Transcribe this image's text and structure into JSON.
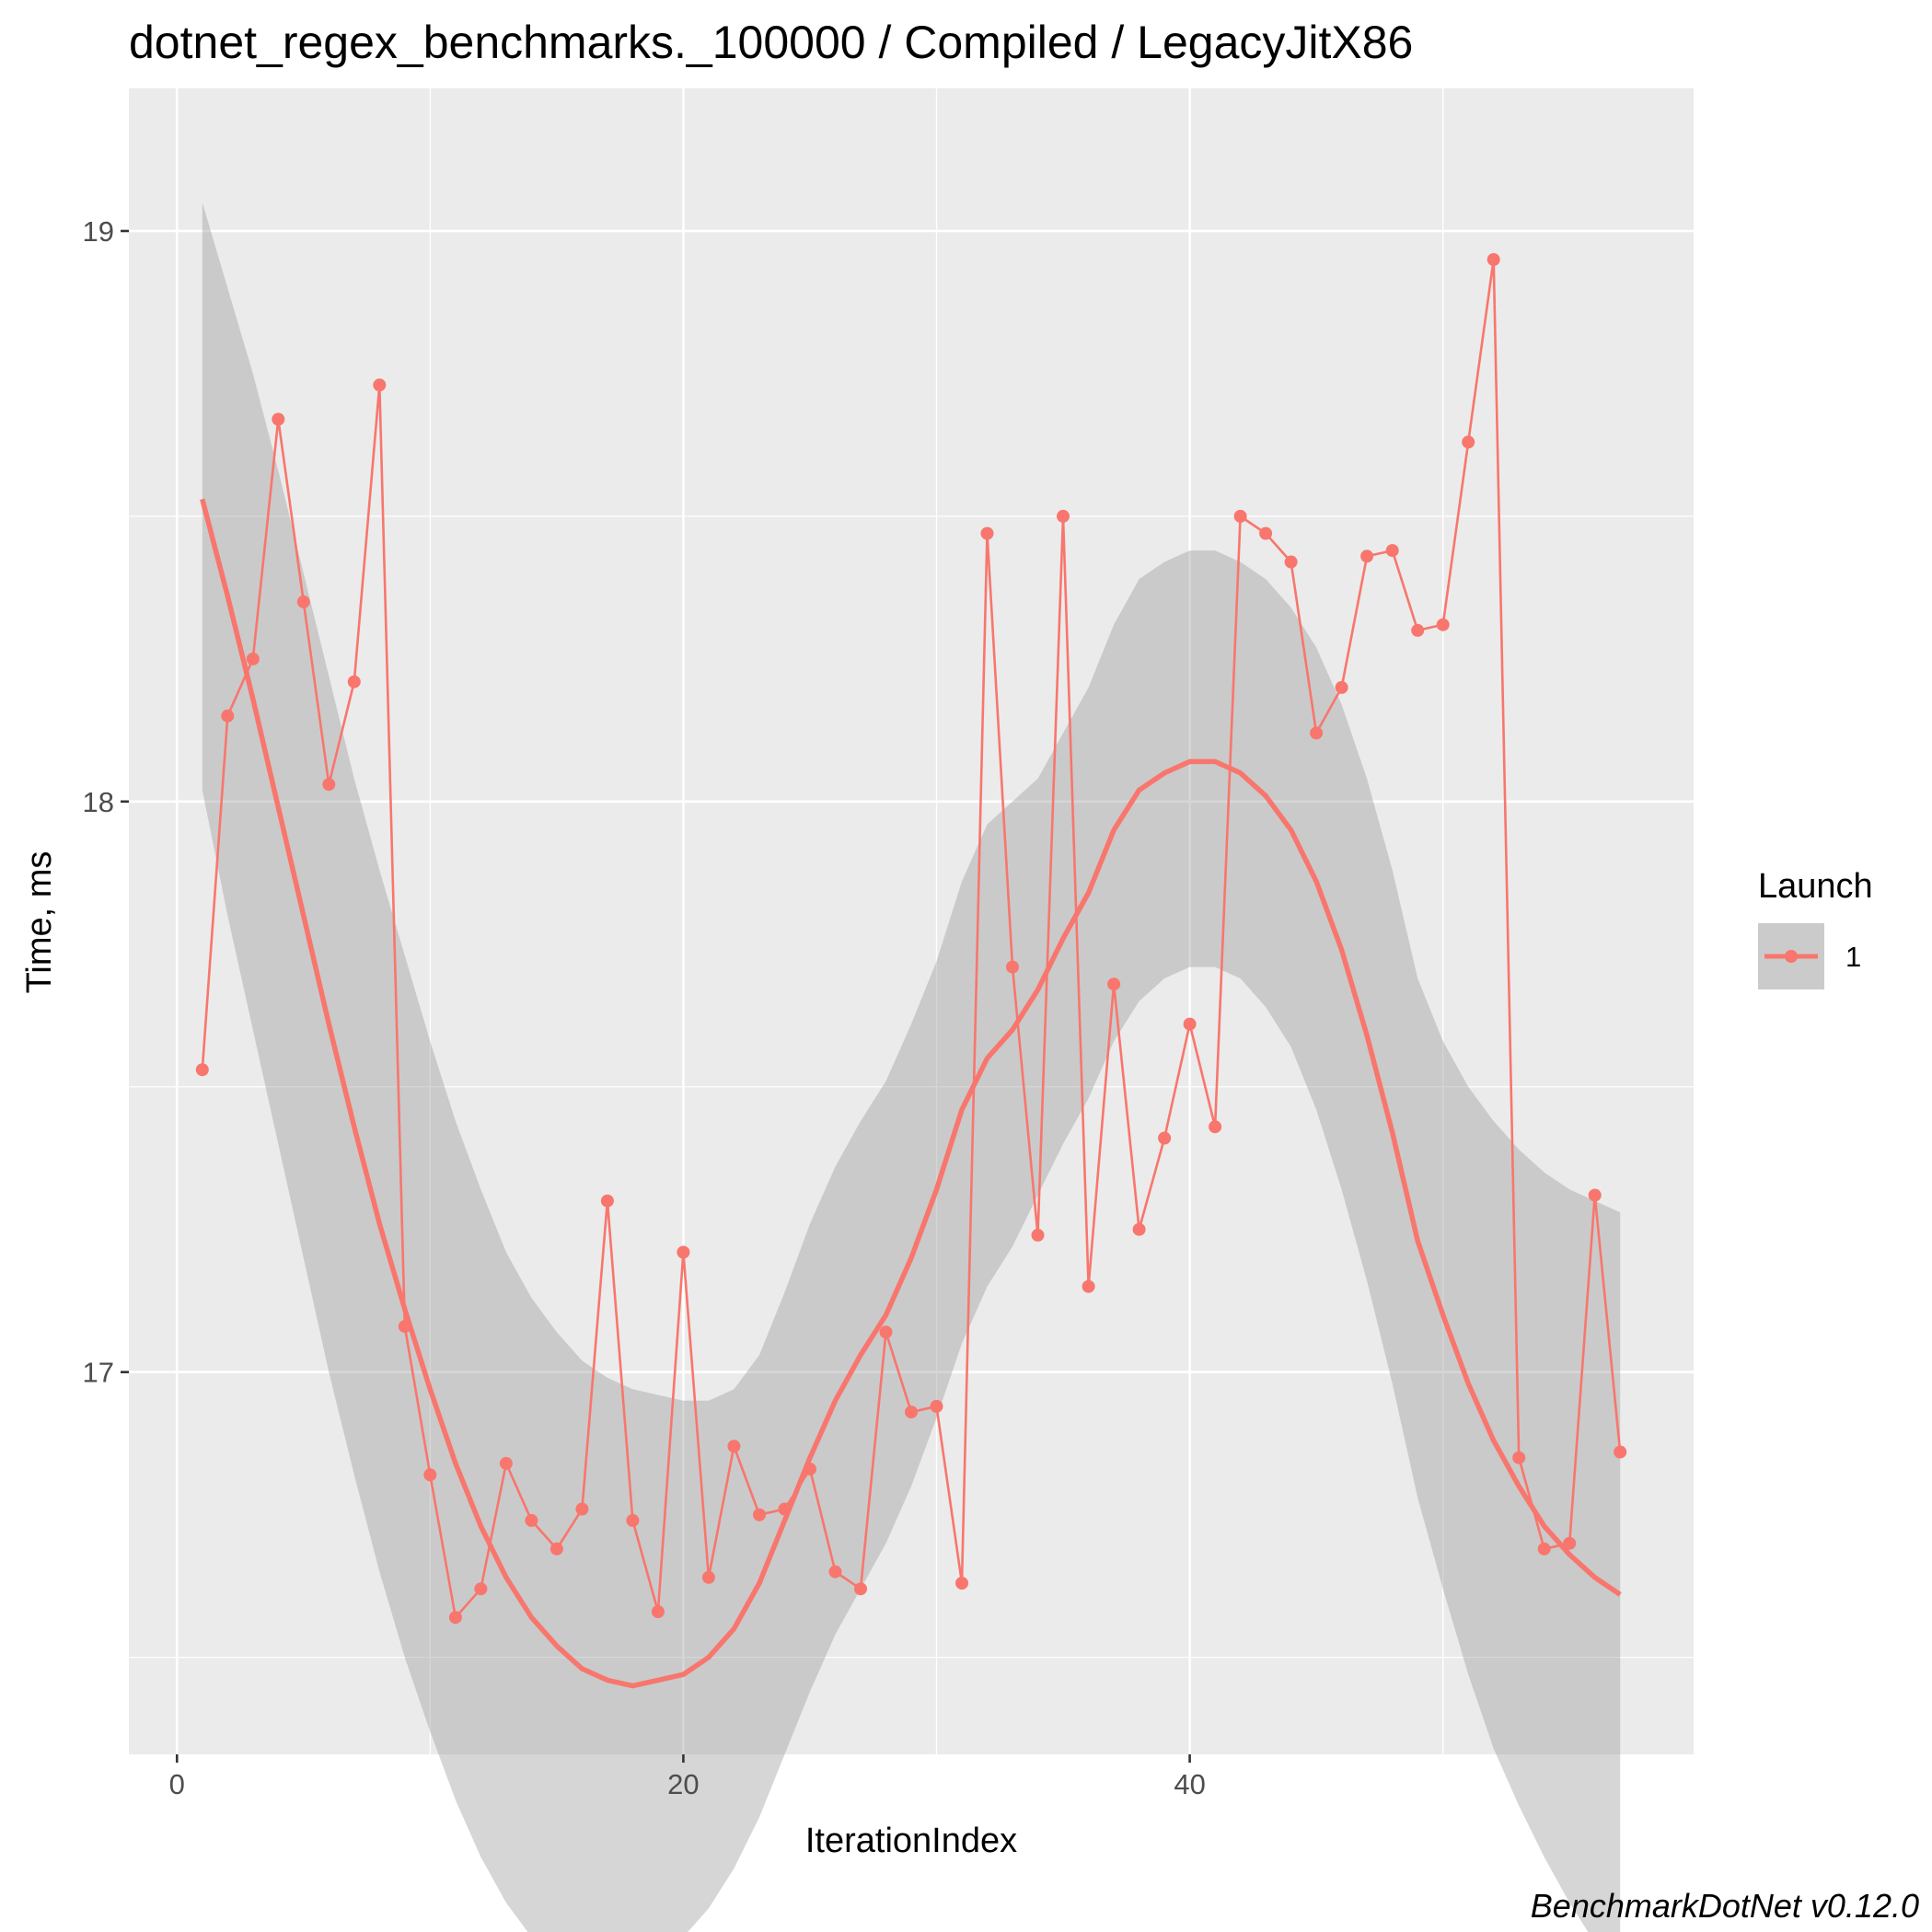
{
  "chart_data": {
    "type": "line",
    "title": "dotnet_regex_benchmarks._100000 / Compiled / LegacyJitX86",
    "xlabel": "IterationIndex",
    "ylabel": "Time, ms",
    "caption": "BenchmarkDotNet v0.12.0",
    "xlim": [
      -1.9,
      59.9
    ],
    "ylim": [
      16.33,
      19.25
    ],
    "x_ticks": [
      0,
      20,
      40
    ],
    "x_tick_labels": [
      "0",
      "20",
      "40"
    ],
    "y_ticks": [
      17,
      18,
      19
    ],
    "y_tick_labels": [
      "17",
      "18",
      "19"
    ],
    "grid": true,
    "legend": {
      "title": "Launch",
      "entries": [
        "1"
      ],
      "position": "right"
    },
    "colors": {
      "series": "#F8766D",
      "band": "#999999",
      "panel": "#EBEBEB",
      "grid": "#FFFFFF"
    },
    "series": [
      {
        "name": "1",
        "x": [
          1,
          2,
          3,
          4,
          5,
          6,
          7,
          8,
          9,
          10,
          11,
          12,
          13,
          14,
          15,
          16,
          17,
          18,
          19,
          20,
          21,
          22,
          23,
          24,
          25,
          26,
          27,
          28,
          29,
          30,
          31,
          32,
          33,
          34,
          35,
          36,
          37,
          38,
          39,
          40,
          41,
          42,
          43,
          44,
          45,
          46,
          47,
          48,
          49,
          50,
          51,
          52,
          53,
          54,
          55,
          56,
          57
        ],
        "y": [
          17.53,
          18.15,
          18.25,
          18.67,
          18.35,
          18.03,
          18.21,
          18.73,
          17.08,
          16.82,
          16.57,
          16.62,
          16.84,
          16.74,
          16.69,
          16.76,
          17.3,
          16.74,
          16.58,
          17.21,
          16.64,
          16.87,
          16.75,
          16.76,
          16.83,
          16.65,
          16.62,
          17.07,
          16.93,
          16.94,
          16.63,
          18.47,
          17.71,
          17.24,
          18.5,
          17.15,
          17.68,
          17.25,
          17.41,
          17.61,
          17.43,
          18.5,
          18.47,
          18.42,
          18.12,
          18.2,
          18.43,
          18.44,
          18.3,
          18.31,
          18.63,
          18.95,
          16.85,
          16.69,
          16.7,
          17.31,
          16.86
        ]
      }
    ],
    "smooth": {
      "method": "loess",
      "x": [
        1,
        2,
        3,
        4,
        5,
        6,
        7,
        8,
        9,
        10,
        11,
        12,
        13,
        14,
        15,
        16,
        17,
        18,
        19,
        20,
        21,
        22,
        23,
        24,
        25,
        26,
        27,
        28,
        29,
        30,
        31,
        32,
        33,
        34,
        35,
        36,
        37,
        38,
        39,
        40,
        41,
        42,
        43,
        44,
        45,
        46,
        47,
        48,
        49,
        50,
        51,
        52,
        53,
        54,
        55,
        56,
        57
      ],
      "fit": [
        18.53,
        18.36,
        18.18,
        17.99,
        17.8,
        17.61,
        17.43,
        17.26,
        17.11,
        16.97,
        16.84,
        16.73,
        16.64,
        16.57,
        16.52,
        16.48,
        16.46,
        16.45,
        16.46,
        16.47,
        16.5,
        16.55,
        16.63,
        16.74,
        16.85,
        16.95,
        17.03,
        17.1,
        17.2,
        17.32,
        17.46,
        17.55,
        17.6,
        17.67,
        17.76,
        17.84,
        17.95,
        18.02,
        18.05,
        18.07,
        18.07,
        18.05,
        18.01,
        17.95,
        17.86,
        17.74,
        17.59,
        17.42,
        17.23,
        17.1,
        16.98,
        16.88,
        16.8,
        16.73,
        16.68,
        16.64,
        16.61
      ],
      "lower": [
        18.02,
        17.8,
        17.6,
        17.4,
        17.2,
        17.0,
        16.82,
        16.65,
        16.5,
        16.37,
        16.25,
        16.15,
        16.07,
        16.01,
        15.97,
        15.94,
        15.93,
        15.94,
        15.97,
        16.01,
        16.06,
        16.13,
        16.22,
        16.33,
        16.44,
        16.54,
        16.62,
        16.7,
        16.8,
        16.92,
        17.05,
        17.15,
        17.22,
        17.31,
        17.4,
        17.48,
        17.58,
        17.65,
        17.69,
        17.71,
        17.71,
        17.69,
        17.64,
        17.57,
        17.46,
        17.32,
        17.16,
        16.98,
        16.78,
        16.62,
        16.47,
        16.34,
        16.24,
        16.15,
        16.07,
        16.0,
        15.94
      ],
      "upper": [
        19.05,
        18.9,
        18.75,
        18.58,
        18.4,
        18.22,
        18.04,
        17.88,
        17.73,
        17.58,
        17.44,
        17.32,
        17.21,
        17.13,
        17.07,
        17.02,
        16.99,
        16.97,
        16.96,
        16.95,
        16.95,
        16.97,
        17.03,
        17.14,
        17.26,
        17.36,
        17.44,
        17.51,
        17.61,
        17.72,
        17.86,
        17.96,
        18.0,
        18.04,
        18.12,
        18.2,
        18.31,
        18.39,
        18.42,
        18.44,
        18.44,
        18.42,
        18.39,
        18.34,
        18.27,
        18.17,
        18.04,
        17.88,
        17.69,
        17.58,
        17.5,
        17.44,
        17.39,
        17.35,
        17.32,
        17.3,
        17.28
      ]
    }
  }
}
